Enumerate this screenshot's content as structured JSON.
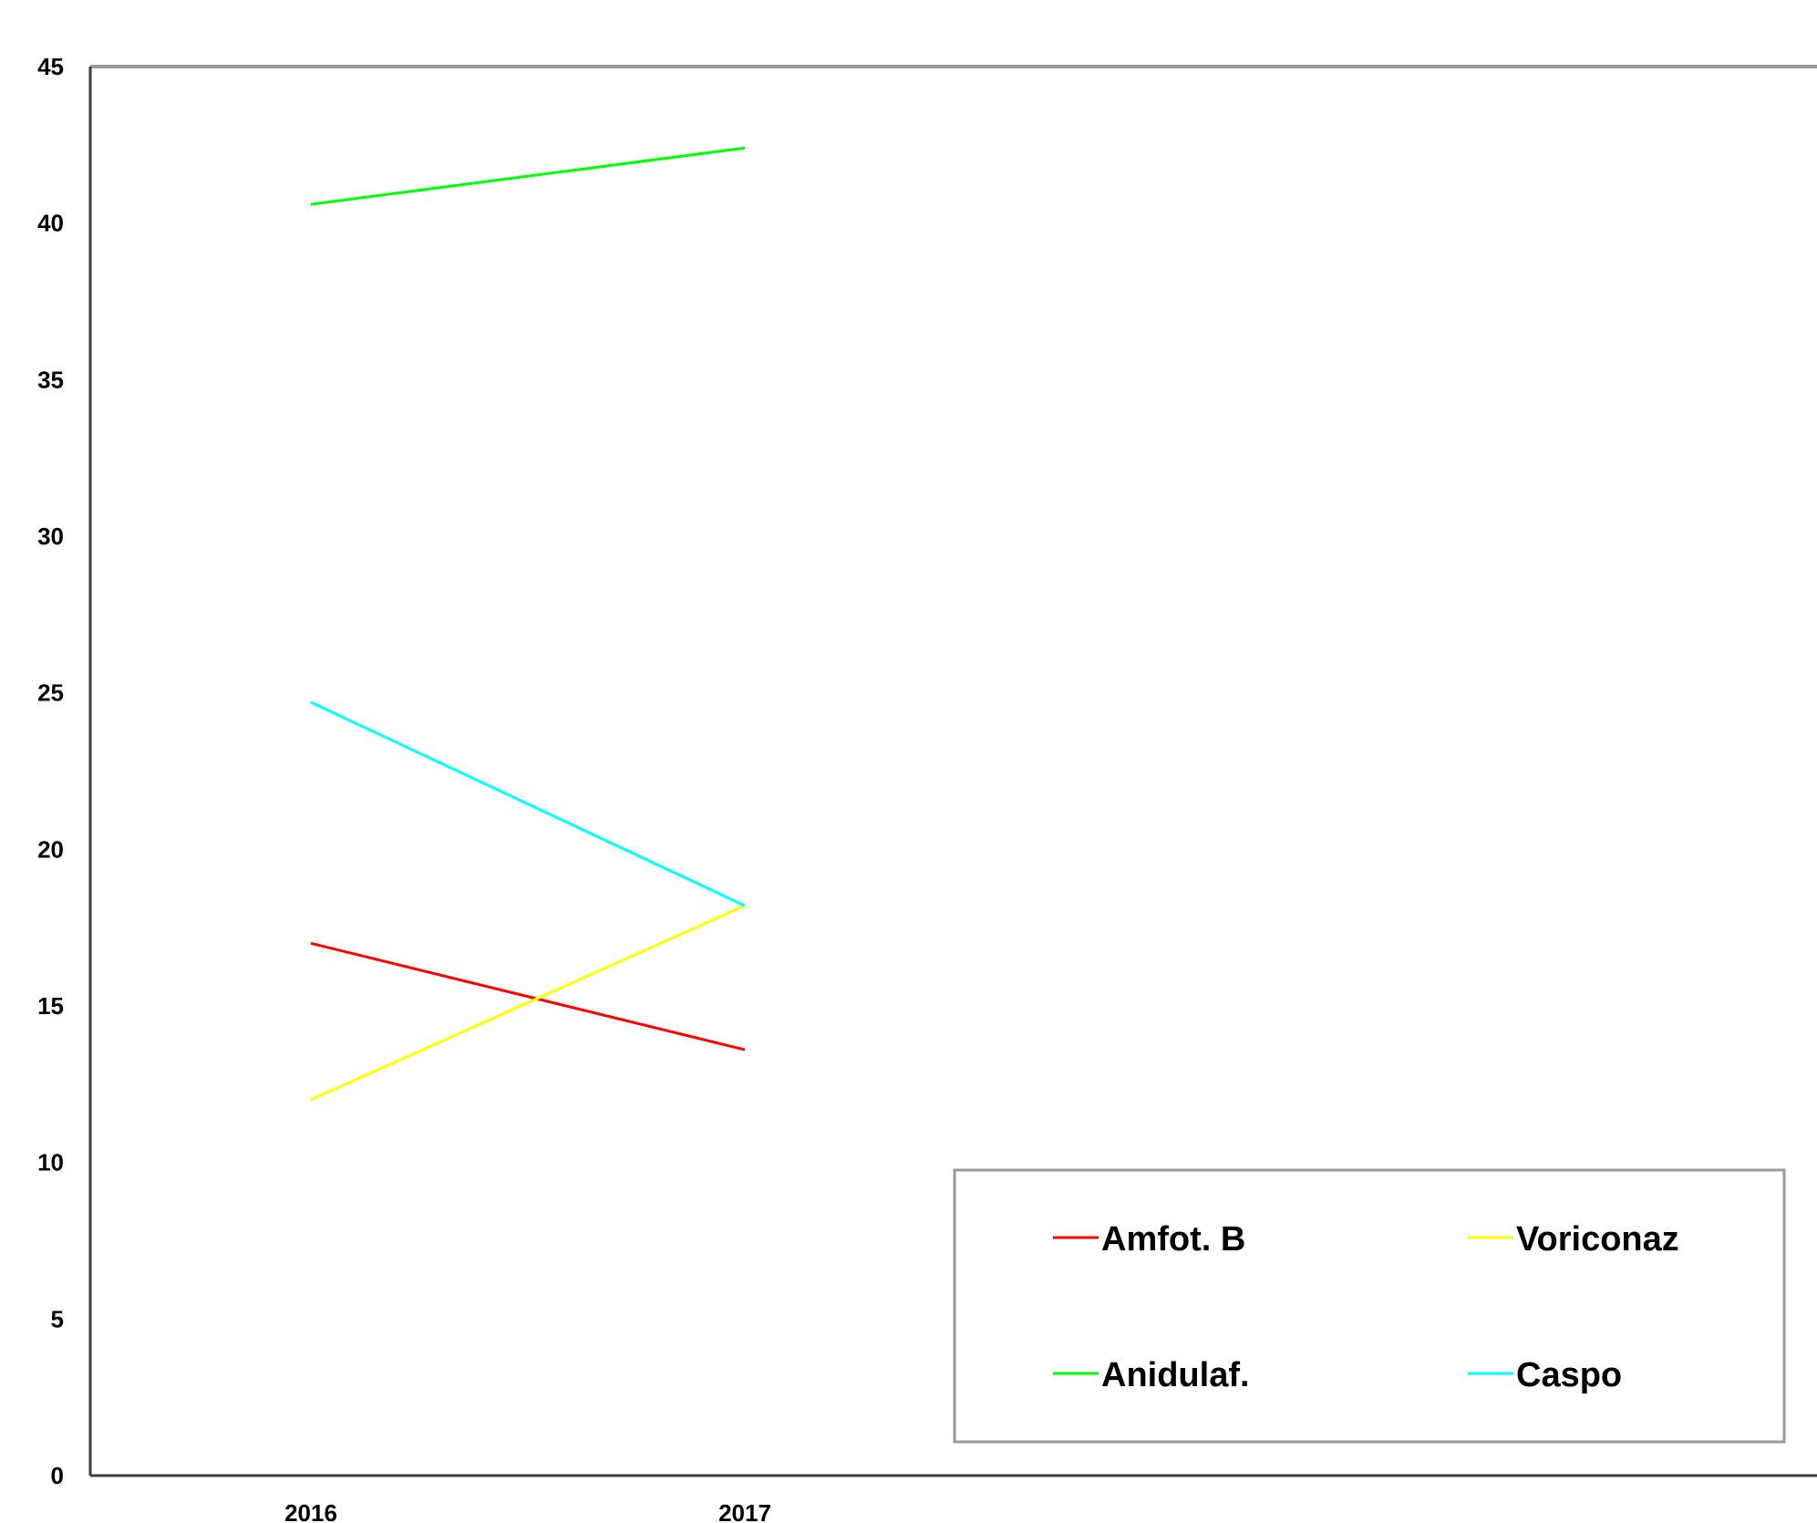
{
  "chart_data": {
    "type": "line",
    "title": "",
    "xlabel": "",
    "ylabel": "",
    "x": [
      "2016",
      "2017"
    ],
    "ylim": [
      0,
      45
    ],
    "yticks": [
      0,
      5,
      10,
      15,
      20,
      25,
      30,
      35,
      40,
      45
    ],
    "grid": false,
    "legend_position": "bottom-right",
    "series": [
      {
        "name": "Amfot. B",
        "color": "#ff0000",
        "values": [
          17.0,
          13.6
        ]
      },
      {
        "name": "Voriconaz",
        "color": "#ffff00",
        "values": [
          12.0,
          18.2
        ]
      },
      {
        "name": "Anidulaf.",
        "color": "#00ff00",
        "values": [
          40.6,
          42.4
        ]
      },
      {
        "name": "Caspo",
        "color": "#00ffff",
        "values": [
          24.7,
          18.2
        ]
      }
    ]
  }
}
